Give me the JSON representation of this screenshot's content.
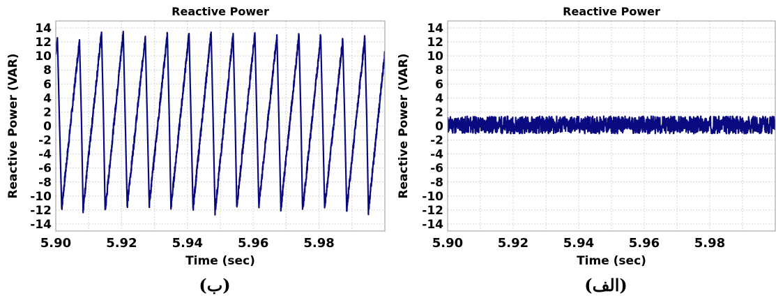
{
  "chart_data": [
    {
      "type": "line",
      "panel_caption": "(ب)",
      "title": "Reactive Power",
      "xlabel": "Time (sec)",
      "ylabel": "Reactive Power (VAR)",
      "xlim": [
        5.9,
        6.0
      ],
      "ylim": [
        -15,
        15
      ],
      "xticks": [
        "5.90",
        "5.92",
        "5.94",
        "5.96",
        "5.98"
      ],
      "xtick_values": [
        5.9,
        5.92,
        5.94,
        5.96,
        5.98
      ],
      "yticks": [
        14,
        12,
        10,
        8,
        6,
        4,
        2,
        0,
        -2,
        -4,
        -6,
        -8,
        -10,
        -12,
        -14
      ],
      "grid": true,
      "line_color": "#0a0a80",
      "waveform": "sawtooth",
      "period_sec": 0.00667,
      "peak_max": 13.5,
      "peak_min": -12.3,
      "series": [
        {
          "name": "",
          "x": [
            5.9,
            5.9005,
            5.9011,
            5.9018,
            5.9072,
            5.9078,
            5.9083,
            5.9139,
            5.9145,
            5.915,
            5.9205,
            5.9211,
            5.9217,
            5.9272,
            5.9278,
            5.9284,
            5.9339,
            5.9345,
            5.935,
            5.9405,
            5.9411,
            5.9417,
            5.9472,
            5.9478,
            5.9484,
            5.9539,
            5.9545,
            5.955,
            5.9605,
            5.9611,
            5.9617,
            5.9672,
            5.9678,
            5.9684,
            5.9739,
            5.9745,
            5.975,
            5.9805,
            5.9811,
            5.9817,
            5.9872,
            5.9878,
            5.9884,
            5.9939,
            5.9945,
            5.995,
            6.0
          ],
          "y": [
            10.2,
            12.6,
            1.0,
            -11.8,
            12.3,
            1.0,
            -11.9,
            13.4,
            1.0,
            -12.2,
            13.5,
            1.0,
            -11.4,
            12.8,
            1.0,
            -11.3,
            13.1,
            1.0,
            -11.6,
            13.2,
            1.0,
            -11.8,
            13.4,
            1.0,
            -12.3,
            13.2,
            1.0,
            -11.5,
            13.3,
            1.0,
            -11.4,
            13.0,
            1.0,
            -11.8,
            13.0,
            1.0,
            -12.2,
            12.8,
            1.0,
            -11.7,
            12.3,
            1.0,
            -11.9,
            12.5,
            1.0,
            -12.1,
            10.4
          ]
        }
      ]
    },
    {
      "type": "line",
      "panel_caption": "(الف)",
      "title": "Reactive Power",
      "xlabel": "Time (sec)",
      "ylabel": "Reactive Power (VAR)",
      "xlim": [
        5.9,
        6.0
      ],
      "ylim": [
        -15,
        15
      ],
      "xticks": [
        "5.90",
        "5.92",
        "5.94",
        "5.96",
        "5.98"
      ],
      "xtick_values": [
        5.9,
        5.92,
        5.94,
        5.96,
        5.98
      ],
      "yticks": [
        14,
        12,
        10,
        8,
        6,
        4,
        2,
        0,
        -2,
        -4,
        -6,
        -8,
        -10,
        -12,
        -14
      ],
      "grid": true,
      "line_color": "#0a0a80",
      "waveform": "noise",
      "mean": 0.2,
      "band_max": 1.4,
      "band_min": -1.1,
      "series": [
        {
          "name": "",
          "x": [
            5.9,
            6.0
          ],
          "y": [
            0.2,
            0.2
          ]
        }
      ]
    }
  ]
}
